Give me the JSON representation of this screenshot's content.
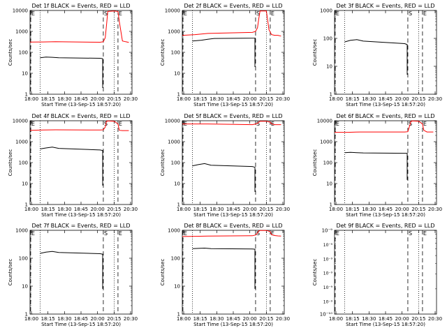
{
  "colors": {
    "events": "#000000",
    "lld": "#ff0000",
    "axis": "#000000"
  },
  "chart_data": [
    {
      "type": "line",
      "title": "Det 1f BLACK = Events, RED = LLD",
      "xlabel": "Start Time (13-Sep-15 18:57:20)",
      "ylabel": "Counts/sec",
      "y_scale": "log",
      "ylim": [
        1,
        10000
      ],
      "yticks": [
        "1",
        "10",
        "100",
        "1000",
        "10000"
      ],
      "xlim": [
        "18:00",
        "20:40"
      ],
      "xticks": [
        "18:00",
        "18:15",
        "18:30",
        "18:45",
        "20:00",
        "20:15",
        "20:30"
      ],
      "markers": [
        {
          "label": "E",
          "x": "18:01",
          "style": "dashed"
        },
        {
          "label": "",
          "x": "18:16",
          "style": "dotted"
        },
        {
          "label": "S",
          "x": "19:55",
          "style": "dashed"
        },
        {
          "label": "",
          "x": "20:12",
          "style": "dotted"
        },
        {
          "label": "E",
          "x": "20:18",
          "style": "dashed"
        }
      ],
      "series": [
        {
          "name": "Events",
          "x": [
            "18:16",
            "18:25",
            "18:35",
            "18:45",
            "19:50",
            "19:54",
            "19:54"
          ],
          "values": [
            55,
            60,
            58,
            55,
            52,
            50,
            2
          ]
        },
        {
          "name": "LLD",
          "x": [
            "18:00",
            "18:20",
            "18:40",
            "19:50",
            "19:55",
            "19:58",
            "20:00",
            "20:02",
            "20:12",
            "20:18",
            "20:20",
            "20:25",
            "20:30",
            "20:35"
          ],
          "values": [
            310,
            315,
            320,
            305,
            320,
            500,
            2000,
            9000,
            9500,
            9000,
            3000,
            350,
            320,
            300
          ]
        }
      ]
    },
    {
      "type": "line",
      "title": "Det 2f BLACK = Events, RED = LLD",
      "xlabel": "Start Time (13-Sep-15 18:57:20)",
      "ylabel": "Counts/sec",
      "y_scale": "log",
      "ylim": [
        1,
        10000
      ],
      "yticks": [
        "1",
        "10",
        "100",
        "1000",
        "10000"
      ],
      "xlim": [
        "18:00",
        "20:40"
      ],
      "xticks": [
        "18:00",
        "18:15",
        "18:30",
        "18:45",
        "20:00",
        "20:15",
        "20:30"
      ],
      "markers": [
        {
          "label": "E",
          "x": "18:01",
          "style": "dashed"
        },
        {
          "label": "",
          "x": "18:16",
          "style": "dotted"
        },
        {
          "label": "S",
          "x": "19:55",
          "style": "dashed"
        },
        {
          "label": "",
          "x": "20:12",
          "style": "dotted"
        },
        {
          "label": "E",
          "x": "20:18",
          "style": "dashed"
        }
      ],
      "series": [
        {
          "name": "Events",
          "x": [
            "18:16",
            "18:30",
            "18:40",
            "18:50",
            "19:55",
            "19:54",
            "19:54"
          ],
          "values": [
            350,
            380,
            420,
            460,
            480,
            480,
            20
          ]
        },
        {
          "name": "LLD",
          "x": [
            "18:00",
            "18:20",
            "18:40",
            "19:50",
            "19:55",
            "19:58",
            "20:00",
            "20:02",
            "20:12",
            "20:16",
            "20:20",
            "20:25",
            "20:30",
            "20:35"
          ],
          "values": [
            650,
            700,
            800,
            900,
            1000,
            1500,
            4000,
            9500,
            9500,
            1200,
            700,
            650,
            650,
            600
          ]
        }
      ]
    },
    {
      "type": "line",
      "title": "Det 3f BLACK = Events, RED = LLD",
      "xlabel": "Start Time (13-Sep-15 18:57:20)",
      "ylabel": "Counts/sec",
      "y_scale": "log",
      "ylim": [
        1,
        1000
      ],
      "yticks": [
        "1",
        "10",
        "100",
        "1000"
      ],
      "xlim": [
        "18:00",
        "20:40"
      ],
      "xticks": [
        "18:00",
        "18:15",
        "18:30",
        "18:45",
        "20:00",
        "20:15",
        "20:30"
      ],
      "markers": [
        {
          "label": "E",
          "x": "18:01",
          "style": "dashed"
        },
        {
          "label": "",
          "x": "18:16",
          "style": "dotted"
        },
        {
          "label": "S",
          "x": "19:55",
          "style": "dashed"
        },
        {
          "label": "",
          "x": "20:12",
          "style": "dotted"
        },
        {
          "label": "E",
          "x": "20:18",
          "style": "dashed"
        }
      ],
      "series": [
        {
          "name": "Events",
          "x": [
            "18:16",
            "18:25",
            "18:35",
            "18:45",
            "19:50",
            "19:54",
            "19:54"
          ],
          "values": [
            75,
            85,
            90,
            80,
            65,
            60,
            5
          ]
        }
      ]
    },
    {
      "type": "line",
      "title": "Det 4f BLACK = Events, RED = LLD",
      "xlabel": "Start Time (13-Sep-15 18:57:20)",
      "ylabel": "Counts/sec",
      "y_scale": "log",
      "ylim": [
        1,
        10000
      ],
      "yticks": [
        "1",
        "10",
        "100",
        "1000",
        "10000"
      ],
      "xlim": [
        "18:00",
        "20:40"
      ],
      "xticks": [
        "18:00",
        "18:15",
        "18:30",
        "18:45",
        "20:00",
        "20:15",
        "20:30"
      ],
      "markers": [
        {
          "label": "E",
          "x": "18:01",
          "style": "dashed"
        },
        {
          "label": "",
          "x": "18:16",
          "style": "dotted"
        },
        {
          "label": "S",
          "x": "19:55",
          "style": "dashed"
        },
        {
          "label": "",
          "x": "20:12",
          "style": "dotted"
        },
        {
          "label": "E",
          "x": "20:18",
          "style": "dashed"
        }
      ],
      "series": [
        {
          "name": "Events",
          "x": [
            "18:16",
            "18:25",
            "18:35",
            "18:45",
            "19:50",
            "19:54",
            "19:54"
          ],
          "values": [
            450,
            500,
            550,
            480,
            400,
            380,
            8
          ]
        },
        {
          "name": "LLD",
          "x": [
            "18:00",
            "18:20",
            "18:40",
            "19:50",
            "19:55",
            "19:58",
            "20:00",
            "20:02",
            "20:12",
            "20:18",
            "20:20",
            "20:25",
            "20:30",
            "20:35"
          ],
          "values": [
            3500,
            3600,
            3700,
            3600,
            3700,
            5000,
            9500,
            9800,
            9500,
            7000,
            3500,
            3400,
            3400,
            3400
          ]
        }
      ]
    },
    {
      "type": "line",
      "title": "Det 5f BLACK = Events, RED = LLD",
      "xlabel": "Start Time (13-Sep-15 18:57:20)",
      "ylabel": "Counts/sec",
      "y_scale": "log",
      "ylim": [
        1,
        10000
      ],
      "yticks": [
        "1",
        "10",
        "100",
        "1000",
        "10000"
      ],
      "xlim": [
        "18:00",
        "20:40"
      ],
      "xticks": [
        "18:00",
        "18:15",
        "18:30",
        "18:45",
        "20:00",
        "20:15",
        "20:30"
      ],
      "markers": [
        {
          "label": "E",
          "x": "18:01",
          "style": "dashed"
        },
        {
          "label": "",
          "x": "18:16",
          "style": "dotted"
        },
        {
          "label": "S",
          "x": "19:55",
          "style": "dashed"
        },
        {
          "label": "",
          "x": "20:12",
          "style": "dotted"
        },
        {
          "label": "E",
          "x": "20:18",
          "style": "dashed"
        }
      ],
      "series": [
        {
          "name": "Events",
          "x": [
            "18:16",
            "18:25",
            "18:35",
            "18:45",
            "19:50",
            "19:54",
            "19:54"
          ],
          "values": [
            70,
            80,
            90,
            75,
            65,
            60,
            4
          ]
        },
        {
          "name": "LLD",
          "x": [
            "18:00",
            "18:20",
            "18:40",
            "19:50",
            "19:55",
            "19:58",
            "20:00",
            "20:02",
            "20:12",
            "20:18",
            "20:20",
            "20:25",
            "20:30",
            "20:35"
          ],
          "values": [
            7000,
            7000,
            7000,
            6500,
            7000,
            7500,
            8500,
            9500,
            9500,
            8500,
            7000,
            6500,
            6500,
            6500
          ]
        }
      ]
    },
    {
      "type": "line",
      "title": "Det 6f BLACK = Events, RED = LLD",
      "xlabel": "Start Time (13-Sep-15 18:57:20)",
      "ylabel": "Counts/sec",
      "y_scale": "log",
      "ylim": [
        1,
        10000
      ],
      "yticks": [
        "1",
        "10",
        "100",
        "1000",
        "10000"
      ],
      "xlim": [
        "18:00",
        "20:40"
      ],
      "xticks": [
        "18:00",
        "18:15",
        "18:30",
        "18:45",
        "20:00",
        "20:15",
        "20:30"
      ],
      "markers": [
        {
          "label": "E",
          "x": "18:01",
          "style": "dashed"
        },
        {
          "label": "",
          "x": "18:16",
          "style": "dotted"
        },
        {
          "label": "S",
          "x": "19:55",
          "style": "dashed"
        },
        {
          "label": "",
          "x": "20:12",
          "style": "dotted"
        },
        {
          "label": "E",
          "x": "20:18",
          "style": "dashed"
        }
      ],
      "series": [
        {
          "name": "Events",
          "x": [
            "18:16",
            "18:25",
            "18:35",
            "18:45",
            "19:50",
            "19:54",
            "19:54"
          ],
          "values": [
            300,
            310,
            300,
            290,
            280,
            280,
            15
          ]
        },
        {
          "name": "LLD",
          "x": [
            "18:00",
            "18:20",
            "18:40",
            "19:50",
            "19:55",
            "19:58",
            "20:00",
            "20:02",
            "20:12",
            "20:18",
            "20:20",
            "20:25",
            "20:30",
            "20:35"
          ],
          "values": [
            2800,
            2800,
            2900,
            2900,
            3000,
            6000,
            9500,
            9800,
            9500,
            7000,
            3500,
            2900,
            2900,
            2900
          ]
        }
      ]
    },
    {
      "type": "line",
      "title": "Det 7f BLACK = Events, RED = LLD",
      "xlabel": "Start Time (13-Sep-15 18:57:20)",
      "ylabel": "Counts/sec",
      "y_scale": "log",
      "ylim": [
        1,
        1000
      ],
      "yticks": [
        "1",
        "10",
        "100",
        "1000"
      ],
      "xlim": [
        "18:00",
        "20:40"
      ],
      "xticks": [
        "18:00",
        "18:15",
        "18:30",
        "18:45",
        "20:00",
        "20:15",
        "20:30"
      ],
      "markers": [
        {
          "label": "E",
          "x": "18:01",
          "style": "dashed"
        },
        {
          "label": "",
          "x": "18:16",
          "style": "dotted"
        },
        {
          "label": "S",
          "x": "19:55",
          "style": "dashed"
        },
        {
          "label": "",
          "x": "20:12",
          "style": "dotted"
        },
        {
          "label": "E",
          "x": "20:18",
          "style": "dashed"
        }
      ],
      "series": [
        {
          "name": "Events",
          "x": [
            "18:16",
            "18:25",
            "18:35",
            "18:45",
            "19:50",
            "19:54",
            "19:54"
          ],
          "values": [
            150,
            165,
            175,
            160,
            145,
            140,
            8
          ]
        }
      ]
    },
    {
      "type": "line",
      "title": "Det 8f BLACK = Events, RED = LLD",
      "xlabel": "Start Time (13-Sep-15 18:57:20)",
      "ylabel": "Counts/sec",
      "y_scale": "log",
      "ylim": [
        1,
        1000
      ],
      "yticks": [
        "1",
        "10",
        "100",
        "1000"
      ],
      "xlim": [
        "18:00",
        "20:40"
      ],
      "xticks": [
        "18:00",
        "18:15",
        "18:30",
        "18:45",
        "20:00",
        "20:15",
        "20:30"
      ],
      "markers": [
        {
          "label": "E",
          "x": "18:01",
          "style": "dashed"
        },
        {
          "label": "",
          "x": "18:16",
          "style": "dotted"
        },
        {
          "label": "S",
          "x": "19:55",
          "style": "dashed"
        },
        {
          "label": "",
          "x": "20:12",
          "style": "dotted"
        },
        {
          "label": "E",
          "x": "20:18",
          "style": "dashed"
        }
      ],
      "series": [
        {
          "name": "Events",
          "x": [
            "18:16",
            "18:25",
            "18:35",
            "18:45",
            "19:50",
            "19:54",
            "19:54"
          ],
          "values": [
            220,
            225,
            230,
            220,
            215,
            210,
            8
          ]
        },
        {
          "name": "LLD",
          "x": [
            "18:00",
            "18:20",
            "18:40",
            "19:50",
            "19:55",
            "19:58",
            "20:00",
            "20:02",
            "20:12",
            "20:18",
            "20:20",
            "20:25",
            "20:30",
            "20:35"
          ],
          "values": [
            600,
            610,
            620,
            640,
            680,
            800,
            950,
            990,
            990,
            900,
            700,
            650,
            630,
            620
          ]
        }
      ]
    },
    {
      "type": "line",
      "title": "Det 9f BLACK = Events, RED = LLD",
      "xlabel": "Start Time (13-Sep-15 18:57:20)",
      "ylabel": "Counts/sec",
      "y_scale": "log",
      "ylim": [
        1e-10,
        1e-09
      ],
      "yticks": [
        "10⁻¹⁰",
        "10⁻⁹"
      ],
      "minor_tick_labels": [
        "10⁻⁹",
        "10⁻⁹",
        "10⁻⁹",
        "10⁻⁹",
        "10⁻⁹"
      ],
      "xlim": [
        "18:00",
        "20:40"
      ],
      "xticks": [
        "18:00",
        "18:15",
        "18:30",
        "18:45",
        "20:00",
        "20:15",
        "20:30"
      ],
      "markers": [
        {
          "label": "E",
          "x": "18:01",
          "style": "dashed"
        },
        {
          "label": "",
          "x": "18:16",
          "style": "dotted"
        },
        {
          "label": "S",
          "x": "19:55",
          "style": "dashed"
        },
        {
          "label": "",
          "x": "20:12",
          "style": "dotted"
        },
        {
          "label": "E",
          "x": "20:18",
          "style": "dashed"
        }
      ],
      "series": []
    }
  ]
}
